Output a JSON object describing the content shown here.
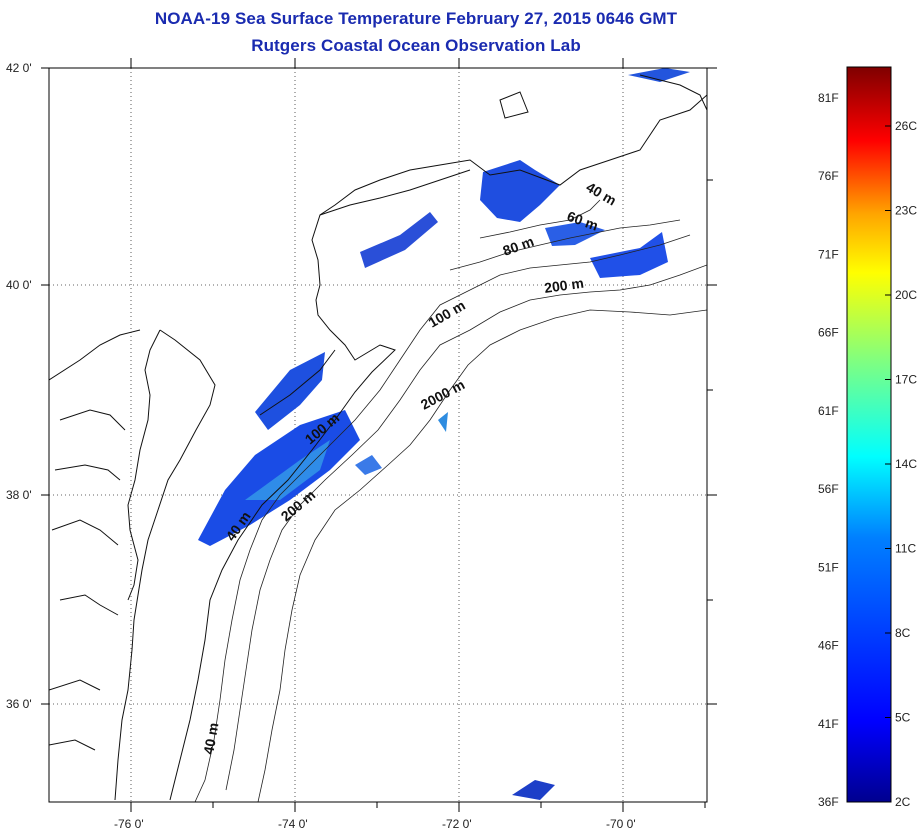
{
  "title": {
    "line1": "NOAA-19 Sea Surface Temperature February 27, 2015 0646 GMT",
    "line2": "Rutgers Coastal Ocean Observation Lab"
  },
  "map": {
    "lon_ticks": [
      "-76 0'",
      "-74 0'",
      "-72 0'",
      "-70 0'"
    ],
    "lat_ticks": [
      "42 0'",
      "40 0'",
      "38 0'",
      "36 0'"
    ],
    "contour_labels": [
      "40 m",
      "60 m",
      "80 m",
      "200 m",
      "100 m",
      "2000 m",
      "100 m",
      "200 m",
      "40 m",
      "40 m"
    ],
    "grid": "dotted"
  },
  "colorbar": {
    "fahrenheit_labels": [
      "81F",
      "76F",
      "71F",
      "66F",
      "61F",
      "56F",
      "51F",
      "46F",
      "41F",
      "36F"
    ],
    "celsius_labels": [
      "26C",
      "23C",
      "20C",
      "17C",
      "14C",
      "11C",
      "8C",
      "5C",
      "2C"
    ],
    "colors": [
      "#7f0000",
      "#ff0000",
      "#ffa500",
      "#ffff00",
      "#80ff80",
      "#00ffff",
      "#0080ff",
      "#0000ff",
      "#00008f"
    ]
  }
}
